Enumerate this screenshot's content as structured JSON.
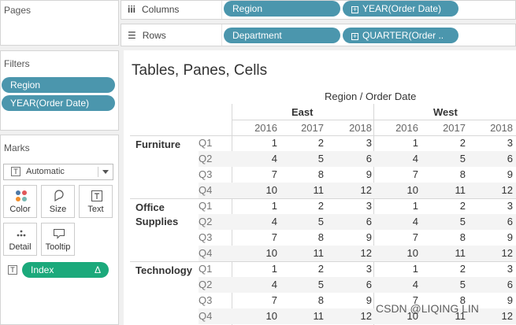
{
  "left": {
    "pages_title": "Pages",
    "filters_title": "Filters",
    "filters": [
      "Region",
      "YEAR(Order Date)"
    ],
    "marks_title": "Marks",
    "mark_type": "Automatic",
    "mark_buttons": [
      "Color",
      "Size",
      "Text",
      "Detail",
      "Tooltip"
    ],
    "index_pill": "Index",
    "index_delta": "Δ",
    "t_glyph": "T"
  },
  "shelves": {
    "columns_label": "Columns",
    "rows_label": "Rows",
    "columns_pills": [
      "Region",
      "YEAR(Order Date)"
    ],
    "rows_pills": [
      "Department",
      "QUARTER(Order .."
    ],
    "columns_icon": "iii",
    "rows_icon": "☰"
  },
  "viz": {
    "title": "Tables, Panes, Cells",
    "column_header": "Region / Order Date",
    "regions": [
      "East",
      "West"
    ],
    "years": [
      "2016",
      "2017",
      "2018"
    ],
    "quarters": [
      "Q1",
      "Q2",
      "Q3",
      "Q4"
    ],
    "departments": [
      "Furniture",
      "Office Supplies",
      "Technology"
    ],
    "cell_values": [
      [
        1,
        2,
        3,
        1,
        2,
        3
      ],
      [
        4,
        5,
        6,
        4,
        5,
        6
      ],
      [
        7,
        8,
        9,
        7,
        8,
        9
      ],
      [
        10,
        11,
        12,
        10,
        11,
        12
      ]
    ]
  },
  "watermark": "CSDN @LIQING LIN"
}
